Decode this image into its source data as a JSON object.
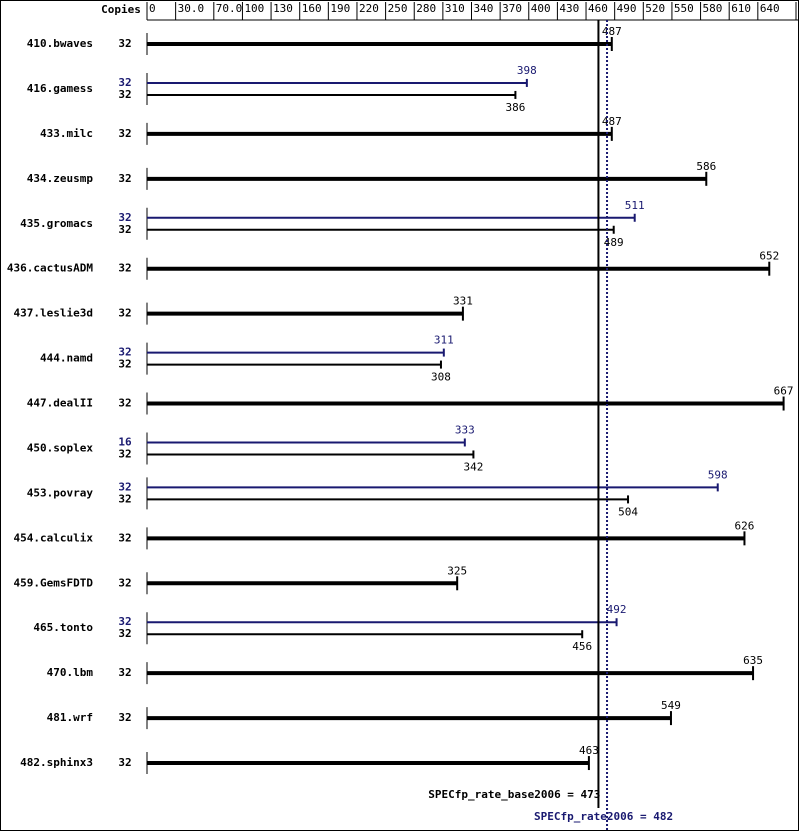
{
  "chart_data": {
    "type": "bar",
    "copies_header": "Copies",
    "categories": [
      "410.bwaves",
      "416.gamess",
      "433.milc",
      "434.zeusmp",
      "435.gromacs",
      "436.cactusADM",
      "437.leslie3d",
      "444.namd",
      "447.dealII",
      "450.soplex",
      "453.povray",
      "454.calculix",
      "459.GemsFDTD",
      "465.tonto",
      "470.lbm",
      "481.wrf",
      "482.sphinx3"
    ],
    "series": [
      {
        "color": "#000000",
        "copies": [
          32,
          32,
          32,
          32,
          32,
          32,
          32,
          32,
          32,
          32,
          32,
          32,
          32,
          32,
          32,
          32,
          32
        ],
        "values": [
          487,
          386,
          487,
          586,
          489,
          652,
          331,
          308,
          667,
          342,
          504,
          626,
          325,
          456,
          635,
          549,
          463
        ]
      },
      {
        "color": "#191970",
        "copies": [
          null,
          32,
          null,
          null,
          32,
          null,
          null,
          32,
          null,
          16,
          32,
          null,
          null,
          32,
          null,
          null,
          null
        ],
        "values": [
          null,
          398,
          null,
          null,
          511,
          null,
          null,
          311,
          null,
          333,
          598,
          null,
          null,
          492,
          null,
          null,
          null
        ]
      }
    ],
    "xlim": [
      0,
      680
    ],
    "xticks": [
      0,
      {
        "value": 30,
        "label": "30.0"
      },
      {
        "value": 70,
        "label": "70.0"
      },
      100,
      130,
      160,
      190,
      220,
      250,
      280,
      310,
      340,
      370,
      400,
      430,
      460,
      490,
      520,
      550,
      580,
      610,
      640,
      680
    ],
    "reference_lines": [
      {
        "label": "SPECfp_rate_base2006 = 473",
        "value": 473,
        "color": "#000000"
      },
      {
        "label": "SPECfp_rate2006 = 482",
        "value": 482,
        "color": "#191970"
      }
    ]
  }
}
